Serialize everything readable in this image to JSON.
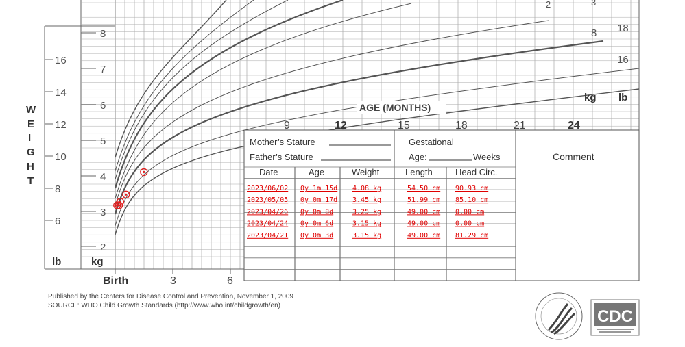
{
  "left_axis": {
    "title": "WEIGHT",
    "unit_lb": "lb",
    "unit_kg": "kg",
    "lb_ticks": [
      "16",
      "14",
      "12",
      "10",
      "8",
      "6"
    ],
    "kg_ticks": [
      "8",
      "7",
      "6",
      "5",
      "4",
      "3",
      "2"
    ]
  },
  "right_axis": {
    "kg_tick": "8",
    "lb_ticks": [
      "18",
      "16"
    ],
    "unit_kg": "kg",
    "unit_lb": "lb"
  },
  "curve_labels": [
    "2",
    "3"
  ],
  "x_axis": {
    "title": "AGE (MONTHS)",
    "birth_label": "Birth",
    "lower_ticks": [
      "3",
      "6"
    ],
    "upper_ticks": [
      "9",
      "12",
      "15",
      "18",
      "21",
      "24"
    ]
  },
  "form": {
    "mothers_stature": "Mother’s Stature",
    "fathers_stature": "Father’s Stature",
    "gestational": "Gestational",
    "age_label": "Age:",
    "weeks": "Weeks",
    "comment": "Comment",
    "columns": [
      "Date",
      "Age",
      "Weight",
      "Length",
      "Head  Circ."
    ]
  },
  "table_rows": [
    {
      "date": "2023/06/02",
      "age": "0y 1m 15d",
      "weight": "4.08 kg",
      "length": "54.50 cm",
      "head": "90.93 cm"
    },
    {
      "date": "2023/05/05",
      "age": "0y 0m 17d",
      "weight": "3.45 kg",
      "length": "51.99 cm",
      "head": "85.10 cm"
    },
    {
      "date": "2023/04/26",
      "age": "0y 0m 8d",
      "weight": "3.25 kg",
      "length": "49.00 cm",
      "head": "0.00 cm"
    },
    {
      "date": "2023/04/24",
      "age": "0y 0m 6d",
      "weight": "3.15 kg",
      "length": "49.00 cm",
      "head": "0.00 cm"
    },
    {
      "date": "2023/04/21",
      "age": "0y 0m 3d",
      "weight": "3.15 kg",
      "length": "49.00 cm",
      "head": "81.29 cm"
    }
  ],
  "footer": {
    "line1": "Published by the Centers for Disease Control and Prevention, November 1, 2009",
    "line2": "SOURCE:  WHO Child Growth Standards (http://www.who.int/childgrowth/en)"
  },
  "logos": {
    "cdc": "CDC"
  },
  "chart_data": {
    "type": "scatter",
    "x_unit": "days",
    "y_unit": "kg",
    "points": [
      {
        "x": 3,
        "y": 3.15
      },
      {
        "x": 6,
        "y": 3.15
      },
      {
        "x": 8,
        "y": 3.25
      },
      {
        "x": 17,
        "y": 3.45
      },
      {
        "x": 45,
        "y": 4.08
      }
    ],
    "marker_color": "#e02020",
    "grid": true
  }
}
